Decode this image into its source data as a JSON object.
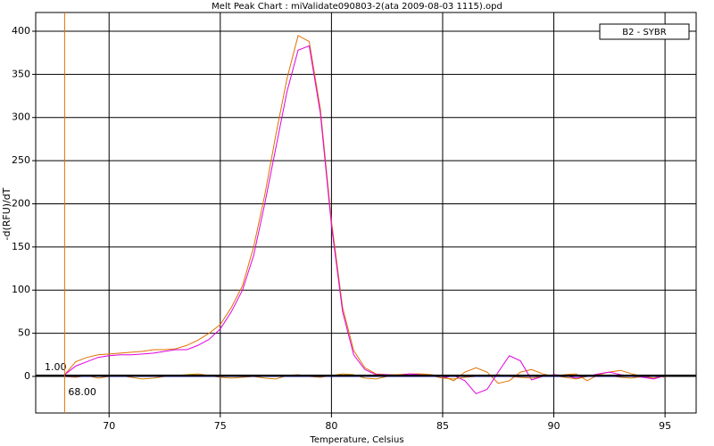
{
  "chart_data": {
    "type": "line",
    "title": "Melt Peak Chart : miValidate090803-2(ata 2009-08-03 1115).opd",
    "xlabel": "Temperature, Celsius",
    "ylabel": "-d(RFU)/dT",
    "legend_title": "B2 - SYBR",
    "x": [
      68,
      68.5,
      69,
      69.5,
      70,
      70.5,
      71,
      71.5,
      72,
      72.5,
      73,
      73.5,
      74,
      74.5,
      75,
      75.5,
      76,
      76.5,
      77,
      77.5,
      78,
      78.5,
      79,
      79.5,
      80,
      80.5,
      81,
      81.5,
      82,
      82.5,
      83,
      83.5,
      84,
      84.5,
      85,
      85.5,
      86,
      86.5,
      87,
      87.5,
      88,
      88.5,
      89,
      89.5,
      90,
      90.5,
      91,
      91.5,
      92,
      92.5,
      93,
      93.5,
      94,
      94.5,
      95
    ],
    "series": [
      {
        "color": "#e07000",
        "values": [
          2,
          17,
          22,
          25,
          26,
          27,
          28,
          29,
          31,
          31,
          32,
          36,
          42,
          50,
          60,
          80,
          105,
          150,
          210,
          280,
          345,
          395,
          388,
          310,
          180,
          80,
          30,
          10,
          3,
          2,
          2,
          3,
          3,
          2,
          0,
          -5,
          5,
          10,
          5,
          -8,
          -5,
          5,
          8,
          3,
          0,
          2,
          3,
          -5,
          2,
          5,
          7,
          3,
          0,
          -2,
          2
        ]
      },
      {
        "color": "#e000e0",
        "values": [
          2,
          12,
          17,
          22,
          24,
          25,
          25,
          26,
          27,
          29,
          31,
          31,
          36,
          43,
          55,
          75,
          100,
          140,
          200,
          265,
          330,
          378,
          383,
          305,
          175,
          75,
          25,
          8,
          2,
          2,
          1,
          3,
          2,
          1,
          -2,
          1,
          -5,
          -20,
          -15,
          5,
          24,
          18,
          -4,
          0,
          2,
          1,
          -2,
          0,
          3,
          5,
          2,
          0,
          -1,
          -3,
          1
        ]
      },
      {
        "color": "#d08000",
        "values": [
          0,
          -1,
          1,
          -2,
          0,
          1,
          -1,
          -3,
          -2,
          0,
          1,
          2,
          3,
          1,
          -1,
          -2,
          -1,
          0,
          -2,
          -3,
          1,
          2,
          0,
          -1,
          1,
          3,
          2,
          -2,
          -3,
          0,
          1,
          0,
          2,
          1,
          -2,
          -3,
          -1,
          0,
          1,
          2,
          0,
          -1,
          -2,
          0,
          1,
          -1,
          -3,
          0,
          2,
          1,
          -1,
          -2,
          0,
          1,
          -1
        ]
      },
      {
        "color": "#000080",
        "values": [
          0,
          0,
          0,
          0,
          0,
          0,
          0,
          0,
          0,
          0,
          0,
          0,
          0,
          0,
          0,
          0,
          0,
          0,
          0,
          0,
          0,
          0,
          0,
          0,
          0,
          0,
          0,
          0,
          0,
          0,
          0,
          0,
          0,
          0,
          0,
          0,
          0,
          0,
          0,
          0,
          0,
          0,
          0,
          0,
          0,
          0,
          0,
          0,
          0,
          0,
          0,
          0,
          0,
          0,
          0
        ]
      }
    ],
    "threshold": {
      "value": 1,
      "label": "1.00"
    },
    "marker": {
      "value": 68,
      "label": "68.00"
    },
    "xlim": [
      66.7,
      96.4
    ],
    "ylim": [
      -42.4,
      421.7
    ],
    "xticks": [
      70,
      75,
      80,
      85,
      90,
      95
    ],
    "yticks": [
      0,
      50,
      100,
      150,
      200,
      250,
      300,
      350,
      400
    ],
    "grid": true
  }
}
